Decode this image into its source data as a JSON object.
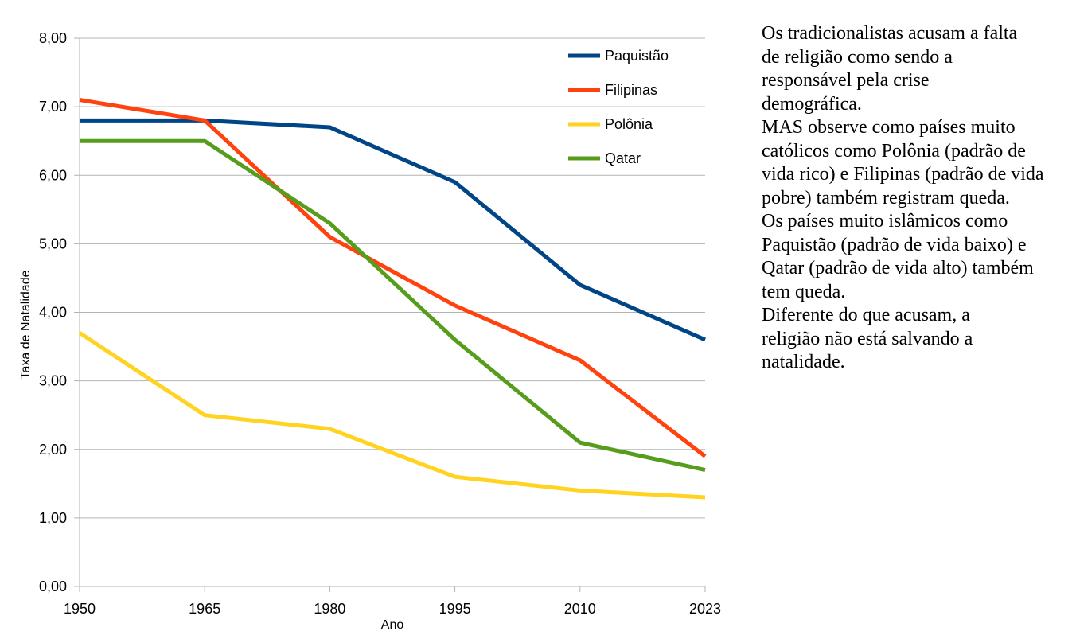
{
  "chart_data": {
    "type": "line",
    "x": [
      "1950",
      "1965",
      "1980",
      "1995",
      "2010",
      "2023"
    ],
    "xlabel": "Ano",
    "ylabel": "Taxa de Natalidade",
    "ylim": [
      0,
      8
    ],
    "yticks": [
      "0,00",
      "1,00",
      "2,00",
      "3,00",
      "4,00",
      "5,00",
      "6,00",
      "7,00",
      "8,00"
    ],
    "grid": true,
    "legend_position": "top-right",
    "series": [
      {
        "name": "Paquistão",
        "color": "#004586",
        "values": [
          6.8,
          6.8,
          6.7,
          5.9,
          4.4,
          3.6
        ]
      },
      {
        "name": "Filipinas",
        "color": "#ff420e",
        "values": [
          7.1,
          6.8,
          5.1,
          4.1,
          3.3,
          1.9
        ]
      },
      {
        "name": "Polônia",
        "color": "#ffd320",
        "values": [
          3.7,
          2.5,
          2.3,
          1.6,
          1.4,
          1.3
        ]
      },
      {
        "name": "Qatar",
        "color": "#579d1c",
        "values": [
          6.5,
          6.5,
          5.3,
          3.6,
          2.1,
          1.7
        ]
      }
    ]
  },
  "commentary": [
    "Os tradicionalistas acusam a falta de religião como sendo a responsável pela crise demográfica.",
    "MAS observe como países muito católicos como Polônia (padrão de vida rico) e Filipinas (padrão de vida pobre) também registram queda.",
    "Os países muito islâmicos como Paquistão (padrão de vida baixo) e Qatar (padrão de vida alto) também tem queda.",
    "Diferente do que acusam, a religião não está salvando a natalidade."
  ]
}
